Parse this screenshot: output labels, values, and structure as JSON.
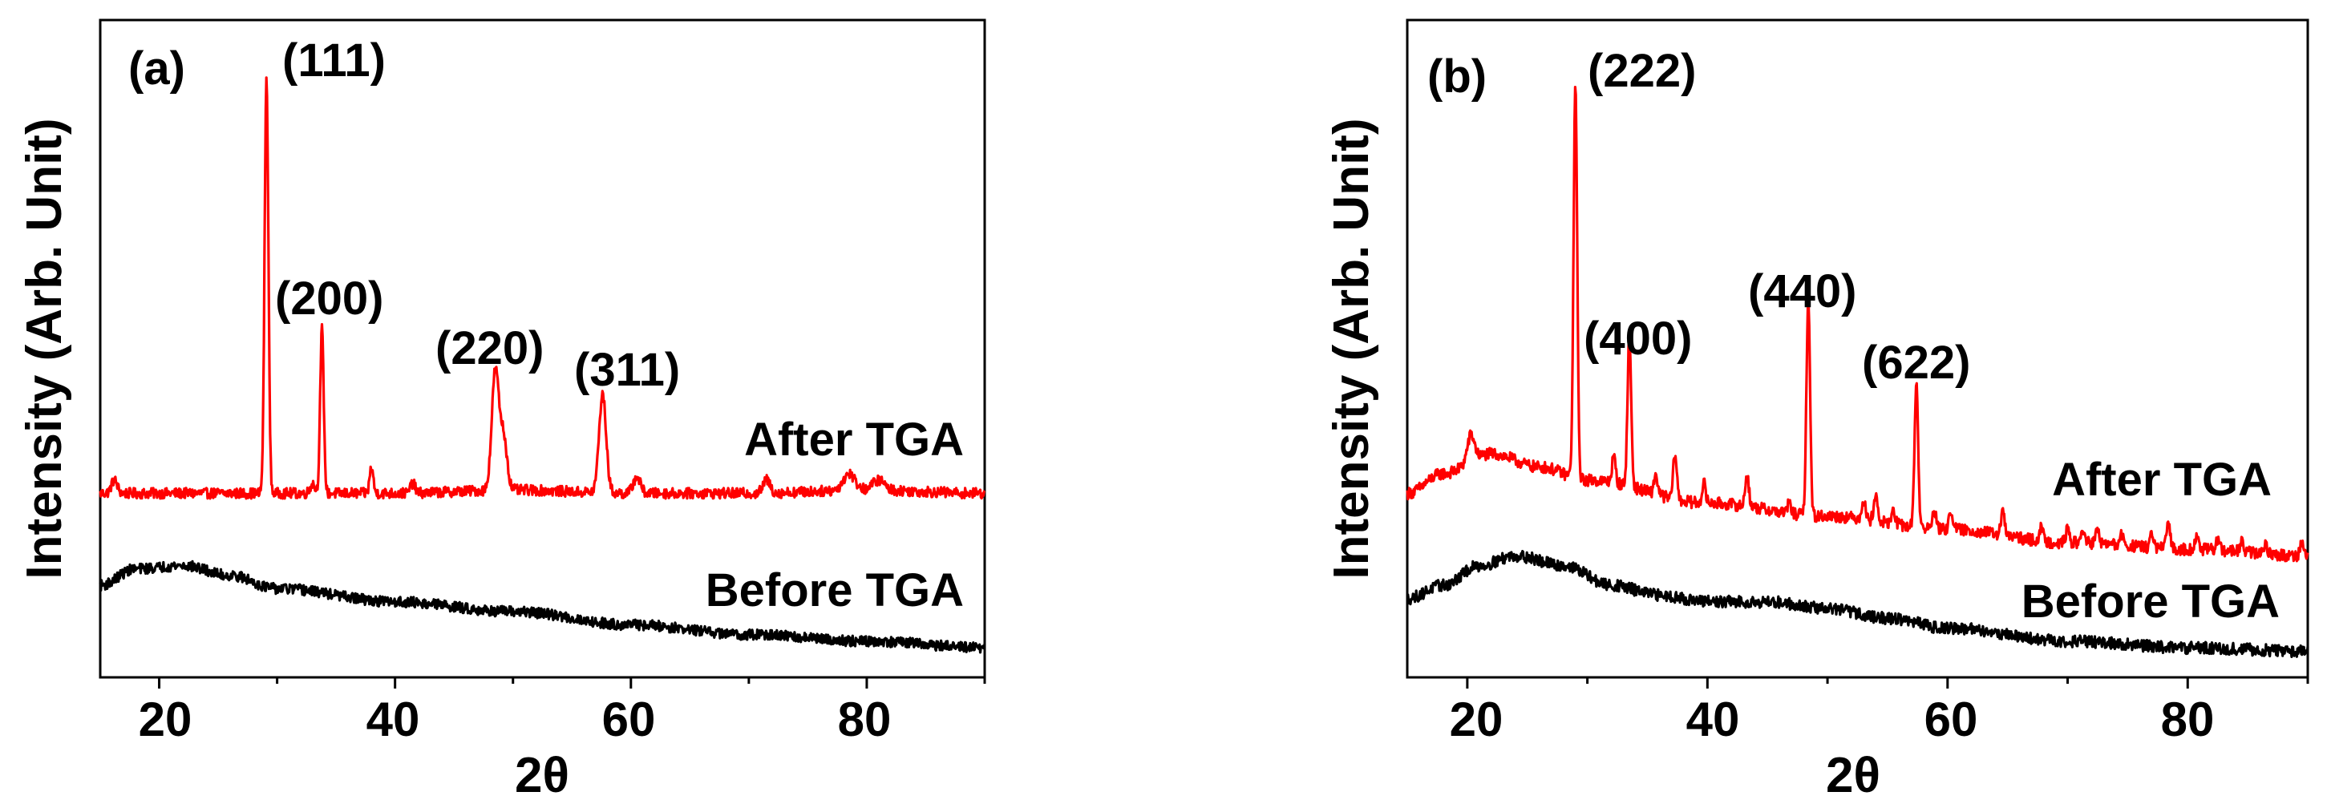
{
  "chart_data": [
    {
      "type": "line",
      "panel_label": "(a)",
      "xlabel": "2θ",
      "ylabel": "Intensity (Arb. Unit)",
      "xlim": [
        15,
        90
      ],
      "ylim": [
        0,
        100
      ],
      "x_ticks": [
        20,
        40,
        60,
        80
      ],
      "series": [
        {
          "name": "After TGA",
          "color": "#ff0000",
          "noise": 0.8,
          "baseline": [
            [
              15,
              28
            ],
            [
              20,
              28
            ],
            [
              30,
              28
            ],
            [
              40,
              28
            ],
            [
              50,
              28.5
            ],
            [
              60,
              28
            ],
            [
              70,
              28
            ],
            [
              80,
              28.5
            ],
            [
              90,
              28
            ]
          ],
          "peaks": [
            {
              "x": 16.2,
              "h": 2,
              "w": 0.25
            },
            {
              "x": 29.1,
              "h": 63,
              "w": 0.16
            },
            {
              "x": 33.0,
              "h": 1.5,
              "w": 0.2
            },
            {
              "x": 33.8,
              "h": 25,
              "w": 0.15
            },
            {
              "x": 38.0,
              "h": 4,
              "w": 0.15
            },
            {
              "x": 41.5,
              "h": 1.5,
              "w": 0.2
            },
            {
              "x": 48.5,
              "h": 18,
              "w": 0.3
            },
            {
              "x": 49.2,
              "h": 8,
              "w": 0.3
            },
            {
              "x": 57.6,
              "h": 15,
              "w": 0.3
            },
            {
              "x": 60.5,
              "h": 2.5,
              "w": 0.3
            },
            {
              "x": 71.5,
              "h": 2,
              "w": 0.3
            },
            {
              "x": 78.5,
              "h": 2.5,
              "w": 0.5
            },
            {
              "x": 81.0,
              "h": 1.5,
              "w": 0.5
            }
          ]
        },
        {
          "name": "Before TGA",
          "color": "#000000",
          "noise": 0.8,
          "baseline": [
            [
              15,
              14
            ],
            [
              18,
              16.5
            ],
            [
              22,
              17
            ],
            [
              26,
              15.5
            ],
            [
              30,
              13.5
            ],
            [
              40,
              11.5
            ],
            [
              50,
              10
            ],
            [
              60,
              8
            ],
            [
              70,
              6.5
            ],
            [
              80,
              5.5
            ],
            [
              90,
              4.5
            ]
          ],
          "peaks": []
        }
      ],
      "peak_labels": [
        "(111)",
        "(200)",
        "(220)",
        "(311)"
      ],
      "trace_labels": [
        "After TGA",
        "Before TGA"
      ]
    },
    {
      "type": "line",
      "panel_label": "(b)",
      "xlabel": "2θ",
      "ylabel": "Intensity (Arb. Unit)",
      "xlim": [
        15,
        90
      ],
      "ylim": [
        0,
        100
      ],
      "x_ticks": [
        20,
        40,
        60,
        80
      ],
      "series": [
        {
          "name": "After TGA",
          "color": "#ff0000",
          "noise": 0.9,
          "baseline": [
            [
              15,
              28
            ],
            [
              18,
              31
            ],
            [
              22,
              34
            ],
            [
              26,
              32
            ],
            [
              30,
              30
            ],
            [
              40,
              26.5
            ],
            [
              50,
              24.5
            ],
            [
              60,
              22.5
            ],
            [
              70,
              20.5
            ],
            [
              80,
              19.5
            ],
            [
              90,
              18.5
            ]
          ],
          "peaks": [
            {
              "x": 20.3,
              "h": 4,
              "w": 0.3
            },
            {
              "x": 29.0,
              "h": 60,
              "w": 0.15
            },
            {
              "x": 32.2,
              "h": 4,
              "w": 0.15
            },
            {
              "x": 33.5,
              "h": 23,
              "w": 0.15
            },
            {
              "x": 35.7,
              "h": 3,
              "w": 0.15
            },
            {
              "x": 37.3,
              "h": 7,
              "w": 0.15
            },
            {
              "x": 39.7,
              "h": 3,
              "w": 0.15
            },
            {
              "x": 43.3,
              "h": 5,
              "w": 0.15
            },
            {
              "x": 46.8,
              "h": 1.5,
              "w": 0.15
            },
            {
              "x": 48.4,
              "h": 33,
              "w": 0.15
            },
            {
              "x": 53.0,
              "h": 3,
              "w": 0.15
            },
            {
              "x": 54.0,
              "h": 4,
              "w": 0.15
            },
            {
              "x": 55.5,
              "h": 2,
              "w": 0.15
            },
            {
              "x": 57.4,
              "h": 22,
              "w": 0.15
            },
            {
              "x": 58.9,
              "h": 3,
              "w": 0.15
            },
            {
              "x": 60.3,
              "h": 3,
              "w": 0.15
            },
            {
              "x": 64.6,
              "h": 3.5,
              "w": 0.15
            },
            {
              "x": 67.8,
              "h": 2,
              "w": 0.15
            },
            {
              "x": 70.0,
              "h": 2,
              "w": 0.15
            },
            {
              "x": 71.3,
              "h": 2,
              "w": 0.15
            },
            {
              "x": 72.5,
              "h": 2,
              "w": 0.15
            },
            {
              "x": 74.5,
              "h": 1.5,
              "w": 0.15
            },
            {
              "x": 77.0,
              "h": 2,
              "w": 0.15
            },
            {
              "x": 78.4,
              "h": 4,
              "w": 0.15
            },
            {
              "x": 80.8,
              "h": 2,
              "w": 0.15
            },
            {
              "x": 82.5,
              "h": 1.5,
              "w": 0.15
            },
            {
              "x": 84.5,
              "h": 1.5,
              "w": 0.15
            },
            {
              "x": 86.5,
              "h": 1.5,
              "w": 0.15
            },
            {
              "x": 89.5,
              "h": 2,
              "w": 0.15
            }
          ]
        },
        {
          "name": "Before TGA",
          "color": "#000000",
          "noise": 0.9,
          "baseline": [
            [
              15,
              12
            ],
            [
              18,
              14
            ],
            [
              21,
              17
            ],
            [
              24,
              18.5
            ],
            [
              28,
              17
            ],
            [
              32,
              14
            ],
            [
              36,
              12.5
            ],
            [
              40,
              11.5
            ],
            [
              45,
              11.5
            ],
            [
              50,
              10.5
            ],
            [
              55,
              9
            ],
            [
              60,
              7.5
            ],
            [
              70,
              5.5
            ],
            [
              80,
              4.5
            ],
            [
              90,
              4
            ]
          ],
          "peaks": []
        }
      ],
      "peak_labels": [
        "(222)",
        "(400)",
        "(440)",
        "(622)"
      ],
      "trace_labels": [
        "After TGA",
        "Before TGA"
      ]
    }
  ]
}
